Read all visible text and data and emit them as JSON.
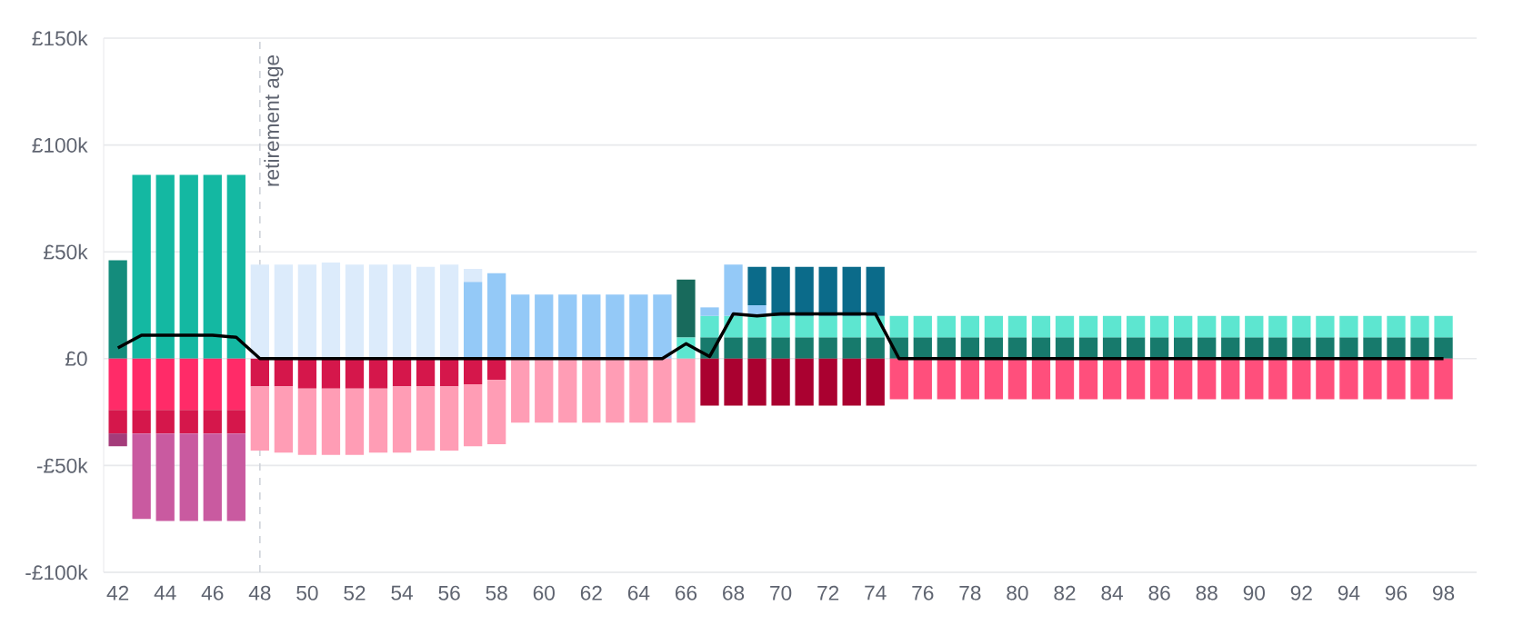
{
  "chart_data": {
    "type": "bar",
    "stacked": true,
    "x": [
      42,
      43,
      44,
      45,
      46,
      47,
      48,
      49,
      50,
      51,
      52,
      53,
      54,
      55,
      56,
      57,
      58,
      59,
      60,
      61,
      62,
      63,
      64,
      65,
      66,
      67,
      68,
      69,
      70,
      71,
      72,
      73,
      74,
      75,
      76,
      77,
      78,
      79,
      80,
      81,
      82,
      83,
      84,
      85,
      86,
      87,
      88,
      89,
      90,
      91,
      92,
      93,
      94,
      95,
      96,
      97,
      98
    ],
    "xlim": [
      41.4,
      99.4
    ],
    "xticks": [
      42,
      44,
      46,
      48,
      50,
      52,
      54,
      56,
      58,
      60,
      62,
      64,
      66,
      68,
      70,
      72,
      74,
      76,
      78,
      80,
      82,
      84,
      86,
      88,
      90,
      92,
      94,
      96,
      98
    ],
    "ylim": [
      -100,
      150
    ],
    "yticks": [
      {
        "value": -100,
        "label": "-£100k"
      },
      {
        "value": -50,
        "label": "-£50k"
      },
      {
        "value": 0,
        "label": "£0"
      },
      {
        "value": 50,
        "label": "£50k"
      },
      {
        "value": 100,
        "label": "£100k"
      },
      {
        "value": 150,
        "label": "£150k"
      }
    ],
    "grid": "y",
    "ref_lines": [
      {
        "axis": "x",
        "value": 48,
        "label": "retirement age",
        "line_style": "dashed",
        "color": "#cfd3da"
      }
    ],
    "series": [
      {
        "color": "#148c7c",
        "values": [
          46,
          null,
          null,
          null,
          null,
          null,
          null,
          null,
          null,
          null,
          null,
          null,
          null,
          null,
          null,
          null,
          null,
          null,
          null,
          null,
          null,
          null,
          null,
          null,
          null,
          null,
          null,
          null,
          null,
          null,
          null,
          null,
          null,
          null,
          null,
          null,
          null,
          null,
          null,
          null,
          null,
          null,
          null,
          null,
          null,
          null,
          null,
          null,
          null,
          null,
          null,
          null,
          null,
          null,
          null,
          null,
          null
        ]
      },
      {
        "color": "#14b8a2",
        "values": [
          null,
          86,
          86,
          86,
          86,
          86,
          null,
          null,
          null,
          null,
          null,
          null,
          null,
          null,
          null,
          null,
          null,
          null,
          null,
          null,
          null,
          null,
          null,
          null,
          null,
          null,
          null,
          null,
          null,
          null,
          null,
          null,
          null,
          null,
          null,
          null,
          null,
          null,
          null,
          null,
          null,
          null,
          null,
          null,
          null,
          null,
          null,
          null,
          null,
          null,
          null,
          null,
          null,
          null,
          null,
          null,
          null
        ]
      },
      {
        "color": "#5de6d0",
        "values": [
          null,
          null,
          null,
          null,
          null,
          null,
          null,
          null,
          null,
          null,
          null,
          null,
          null,
          null,
          null,
          null,
          null,
          null,
          null,
          null,
          null,
          null,
          null,
          null,
          10,
          null,
          null,
          null,
          null,
          null,
          null,
          null,
          null,
          null,
          null,
          null,
          null,
          null,
          null,
          null,
          null,
          null,
          null,
          null,
          null,
          null,
          null,
          null,
          null,
          null,
          null,
          null,
          null,
          null,
          null,
          null,
          null
        ]
      },
      {
        "color": "#177a6c",
        "values": [
          null,
          null,
          null,
          null,
          null,
          null,
          null,
          null,
          null,
          null,
          null,
          null,
          null,
          null,
          null,
          null,
          null,
          null,
          null,
          null,
          null,
          null,
          null,
          null,
          null,
          10,
          10,
          10,
          10,
          10,
          10,
          10,
          10,
          10,
          10,
          10,
          10,
          10,
          10,
          10,
          10,
          10,
          10,
          10,
          10,
          10,
          10,
          10,
          10,
          10,
          10,
          10,
          10,
          10,
          10,
          10,
          10
        ]
      },
      {
        "color": "#5de6d0",
        "values": [
          null,
          null,
          null,
          null,
          null,
          null,
          null,
          null,
          null,
          null,
          null,
          null,
          null,
          null,
          null,
          null,
          null,
          null,
          null,
          null,
          null,
          null,
          null,
          null,
          null,
          10,
          10,
          10,
          10,
          10,
          10,
          10,
          10,
          10,
          10,
          10,
          10,
          10,
          10,
          10,
          10,
          10,
          10,
          10,
          10,
          10,
          10,
          10,
          10,
          10,
          10,
          10,
          10,
          10,
          10,
          10,
          10
        ]
      },
      {
        "color": "#94c9f7",
        "values": [
          null,
          null,
          null,
          null,
          null,
          null,
          null,
          null,
          null,
          null,
          null,
          null,
          null,
          null,
          null,
          36,
          40,
          30,
          30,
          30,
          30,
          30,
          30,
          30,
          null,
          4,
          24,
          5,
          null,
          null,
          null,
          null,
          null,
          null,
          null,
          null,
          null,
          null,
          null,
          null,
          null,
          null,
          null,
          null,
          null,
          null,
          null,
          null,
          null,
          null,
          null,
          null,
          null,
          null,
          null,
          null,
          null
        ]
      },
      {
        "color": "#dcebfb",
        "values": [
          null,
          null,
          null,
          null,
          null,
          null,
          44,
          44,
          44,
          45,
          44,
          44,
          44,
          43,
          44,
          6,
          null,
          null,
          null,
          null,
          null,
          null,
          null,
          null,
          null,
          null,
          null,
          null,
          null,
          null,
          null,
          null,
          null,
          null,
          null,
          null,
          null,
          null,
          null,
          null,
          null,
          null,
          null,
          null,
          null,
          null,
          null,
          null,
          null,
          null,
          null,
          null,
          null,
          null,
          null,
          null,
          null
        ]
      },
      {
        "color": "#186a5c",
        "values": [
          null,
          null,
          null,
          null,
          null,
          null,
          null,
          null,
          null,
          null,
          null,
          null,
          null,
          null,
          null,
          null,
          null,
          null,
          null,
          null,
          null,
          null,
          null,
          null,
          27,
          null,
          null,
          null,
          null,
          null,
          null,
          null,
          null,
          null,
          null,
          null,
          null,
          null,
          null,
          null,
          null,
          null,
          null,
          null,
          null,
          null,
          null,
          null,
          null,
          null,
          null,
          null,
          null,
          null,
          null,
          null,
          null
        ]
      },
      {
        "color": "#0b6b8a",
        "values": [
          null,
          null,
          null,
          null,
          null,
          null,
          null,
          null,
          null,
          null,
          null,
          null,
          null,
          null,
          null,
          null,
          null,
          null,
          null,
          null,
          null,
          null,
          null,
          null,
          null,
          null,
          null,
          18,
          23,
          23,
          23,
          23,
          23,
          null,
          null,
          null,
          null,
          null,
          null,
          null,
          null,
          null,
          null,
          null,
          null,
          null,
          null,
          null,
          null,
          null,
          null,
          null,
          null,
          null,
          null,
          null,
          null
        ]
      },
      {
        "color": "#ff2b68",
        "values": [
          -24,
          -24,
          -24,
          -24,
          -24,
          -24,
          null,
          null,
          null,
          null,
          null,
          null,
          null,
          null,
          null,
          null,
          null,
          null,
          null,
          null,
          null,
          null,
          null,
          null,
          null,
          null,
          null,
          null,
          null,
          null,
          null,
          null,
          null,
          null,
          null,
          null,
          null,
          null,
          null,
          null,
          null,
          null,
          null,
          null,
          null,
          null,
          null,
          null,
          null,
          null,
          null,
          null,
          null,
          null,
          null,
          null,
          null
        ]
      },
      {
        "color": "#d5174b",
        "values": [
          -11,
          -11,
          -11,
          -11,
          -11,
          -11,
          -13,
          -13,
          -14,
          -14,
          -14,
          -14,
          -13,
          -13,
          -13,
          -12,
          -10,
          null,
          null,
          null,
          null,
          null,
          null,
          null,
          null,
          null,
          null,
          null,
          null,
          null,
          null,
          null,
          null,
          null,
          null,
          null,
          null,
          null,
          null,
          null,
          null,
          null,
          null,
          null,
          null,
          null,
          null,
          null,
          null,
          null,
          null,
          null,
          null,
          null,
          null,
          null,
          null
        ]
      },
      {
        "color": "#a43c7a",
        "values": [
          -6,
          null,
          null,
          null,
          null,
          null,
          null,
          null,
          null,
          null,
          null,
          null,
          null,
          null,
          null,
          null,
          null,
          null,
          null,
          null,
          null,
          null,
          null,
          null,
          null,
          null,
          null,
          null,
          null,
          null,
          null,
          null,
          null,
          null,
          null,
          null,
          null,
          null,
          null,
          null,
          null,
          null,
          null,
          null,
          null,
          null,
          null,
          null,
          null,
          null,
          null,
          null,
          null,
          null,
          null,
          null,
          null
        ]
      },
      {
        "color": "#c95aa0",
        "values": [
          null,
          -40,
          -41,
          -41,
          -41,
          -41,
          null,
          null,
          null,
          null,
          null,
          null,
          null,
          null,
          null,
          null,
          null,
          null,
          null,
          null,
          null,
          null,
          null,
          null,
          null,
          null,
          null,
          null,
          null,
          null,
          null,
          null,
          null,
          null,
          null,
          null,
          null,
          null,
          null,
          null,
          null,
          null,
          null,
          null,
          null,
          null,
          null,
          null,
          null,
          null,
          null,
          null,
          null,
          null,
          null,
          null,
          null
        ]
      },
      {
        "color": "#ff9db5",
        "values": [
          null,
          null,
          null,
          null,
          null,
          null,
          -30,
          -31,
          -31,
          -31,
          -31,
          -30,
          -31,
          -30,
          -30,
          -29,
          -30,
          -30,
          -30,
          -30,
          -30,
          -30,
          -30,
          -30,
          -30,
          null,
          null,
          null,
          null,
          null,
          null,
          null,
          null,
          null,
          null,
          null,
          null,
          null,
          null,
          null,
          null,
          null,
          null,
          null,
          null,
          null,
          null,
          null,
          null,
          null,
          null,
          null,
          null,
          null,
          null,
          null,
          null
        ]
      },
      {
        "color": "#aa0130",
        "values": [
          null,
          null,
          null,
          null,
          null,
          null,
          null,
          null,
          null,
          null,
          null,
          null,
          null,
          null,
          null,
          null,
          null,
          null,
          null,
          null,
          null,
          null,
          null,
          null,
          null,
          -22,
          -22,
          -22,
          -22,
          -22,
          -22,
          -22,
          -22,
          null,
          null,
          null,
          null,
          null,
          null,
          null,
          null,
          null,
          null,
          null,
          null,
          null,
          null,
          null,
          null,
          null,
          null,
          null,
          null,
          null,
          null,
          null,
          null
        ]
      },
      {
        "color": "#ff4f7c",
        "values": [
          null,
          null,
          null,
          null,
          null,
          null,
          null,
          null,
          null,
          null,
          null,
          null,
          null,
          null,
          null,
          null,
          null,
          null,
          null,
          null,
          null,
          null,
          null,
          null,
          null,
          null,
          null,
          null,
          null,
          null,
          null,
          null,
          null,
          -19,
          -19,
          -19,
          -19,
          -19,
          -19,
          -19,
          -19,
          -19,
          -19,
          -19,
          -19,
          -19,
          -19,
          -19,
          -19,
          -19,
          -19,
          -19,
          -19,
          -19,
          -19,
          -19,
          -19
        ]
      },
      {
        "type": "line",
        "color": "#000000",
        "values": [
          5,
          11,
          11,
          11,
          11,
          10,
          0,
          0,
          0,
          0,
          0,
          0,
          0,
          0,
          0,
          0,
          0,
          0,
          0,
          0,
          0,
          0,
          0,
          0,
          7,
          1,
          21,
          20,
          21,
          21,
          21,
          21,
          21,
          0,
          0,
          0,
          0,
          0,
          0,
          0,
          0,
          0,
          0,
          0,
          0,
          0,
          0,
          0,
          0,
          0,
          0,
          0,
          0,
          0,
          0,
          0,
          0
        ]
      }
    ]
  }
}
